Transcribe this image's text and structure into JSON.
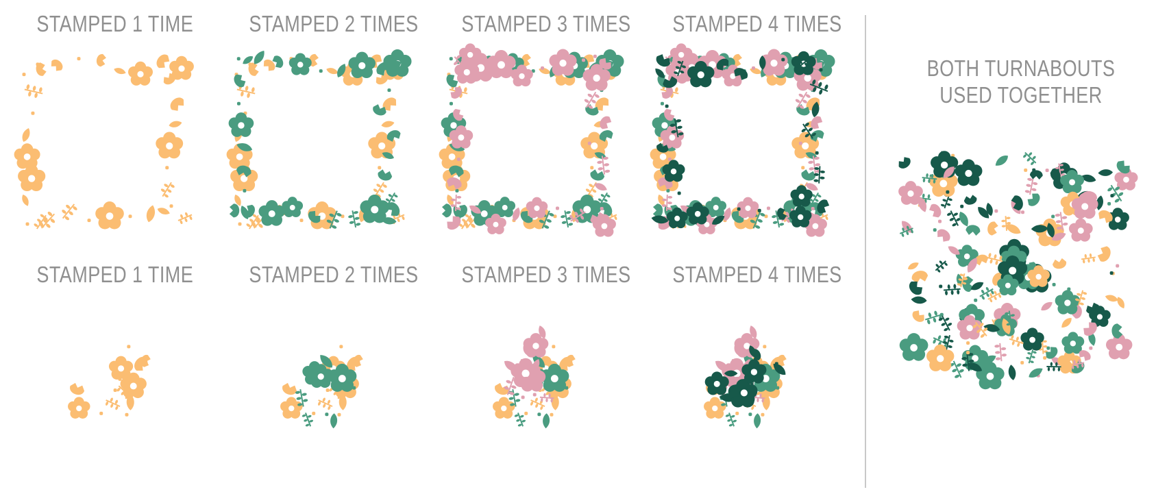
{
  "colors": {
    "label": "#8f8f8f",
    "orange": "#fbbd72",
    "green": "#4a9c80",
    "dark_green": "#17594a",
    "pink": "#e0a0b0",
    "divider": "#c8c8c8"
  },
  "top_row": {
    "labels": [
      "STAMPED 1 TIME",
      "STAMPED 2 TIMES",
      "STAMPED 3 TIMES",
      "STAMPED 4 TIMES"
    ]
  },
  "bottom_row": {
    "labels": [
      "STAMPED 1 TIME",
      "STAMPED 2 TIMES",
      "STAMPED 3 TIMES",
      "STAMPED 4 TIMES"
    ]
  },
  "combined": {
    "title_line1": "BOTH TURNABOUTS",
    "title_line2": "USED TOGETHER"
  },
  "icons": [
    "flower-icon",
    "leaf-icon",
    "tulip-icon",
    "sprig-icon",
    "dot-icon"
  ]
}
